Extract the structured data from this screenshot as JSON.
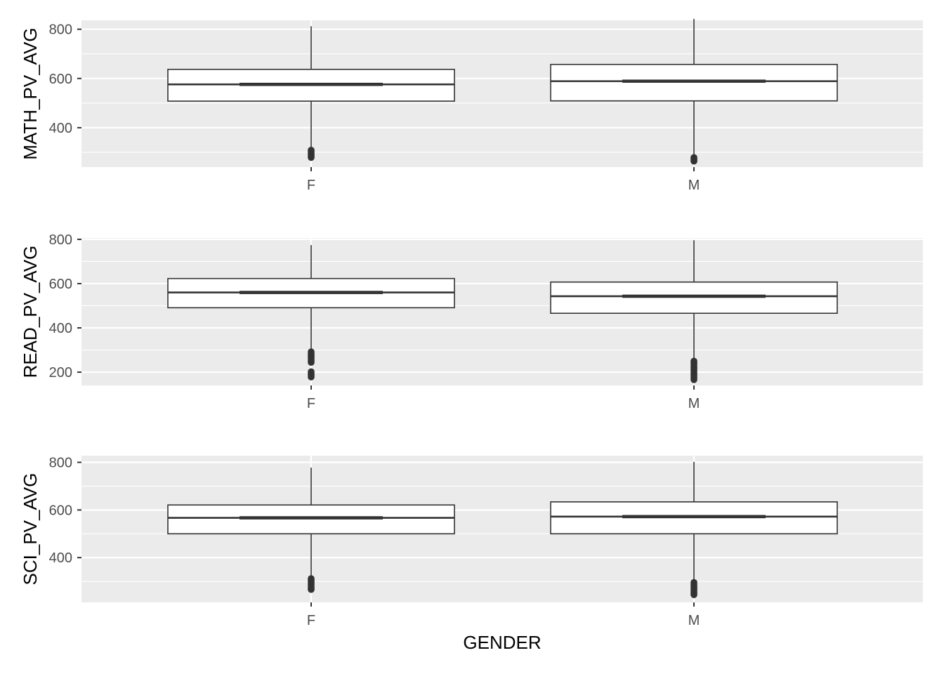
{
  "chart_data": [
    {
      "type": "boxplot",
      "ylabel": "MATH_PV_AVG",
      "xlabel": "",
      "categories": [
        "F",
        "M"
      ],
      "ylim": [
        240,
        836
      ],
      "yticks": [
        400,
        600,
        800
      ],
      "grid": true,
      "boxes": [
        {
          "category": "F",
          "q1": 508,
          "median": 576,
          "q3": 637,
          "whisker_low": 314,
          "whisker_high": 812,
          "outliers": [
            309,
            304,
            299,
            294,
            288,
            283,
            279
          ]
        },
        {
          "category": "M",
          "q1": 509,
          "median": 589,
          "q3": 657,
          "whisker_low": 284,
          "whisker_high": 842,
          "outliers": [
            279,
            275,
            271,
            267,
            264
          ]
        }
      ]
    },
    {
      "type": "boxplot",
      "ylabel": "READ_PV_AVG",
      "xlabel": "",
      "categories": [
        "F",
        "M"
      ],
      "ylim": [
        140,
        806
      ],
      "yticks": [
        200,
        400,
        600,
        800
      ],
      "grid": true,
      "boxes": [
        {
          "category": "F",
          "q1": 491,
          "median": 560,
          "q3": 623,
          "whisker_low": 296,
          "whisker_high": 774,
          "outliers": [
            292,
            286,
            280,
            274,
            268,
            262,
            256,
            250,
            244,
            202,
            196,
            190,
            184,
            178
          ]
        },
        {
          "category": "M",
          "q1": 466,
          "median": 543,
          "q3": 607,
          "whisker_low": 255,
          "whisker_high": 796,
          "outliers": [
            250,
            244,
            238,
            232,
            226,
            220,
            214,
            208,
            202,
            196,
            190,
            184,
            178,
            172,
            166
          ]
        }
      ]
    },
    {
      "type": "boxplot",
      "ylabel": "SCI_PV_AVG",
      "xlabel": "GENDER",
      "categories": [
        "F",
        "M"
      ],
      "ylim": [
        212,
        828
      ],
      "yticks": [
        400,
        600,
        800
      ],
      "grid": true,
      "boxes": [
        {
          "category": "F",
          "q1": 500,
          "median": 567,
          "q3": 621,
          "whisker_low": 318,
          "whisker_high": 778,
          "outliers": [
            312,
            306,
            300,
            294,
            288,
            282,
            276,
            270,
            266
          ]
        },
        {
          "category": "M",
          "q1": 500,
          "median": 572,
          "q3": 634,
          "whisker_low": 302,
          "whisker_high": 802,
          "outliers": [
            296,
            290,
            284,
            278,
            272,
            266,
            260,
            254,
            248,
            244
          ]
        }
      ]
    }
  ],
  "colors": {
    "panel_background": "#ebebeb",
    "grid_major": "#ffffff",
    "box_fill": "#ffffff",
    "box_stroke": "#333333",
    "tick_text": "#4d4d4d",
    "title_text": "#000000"
  }
}
